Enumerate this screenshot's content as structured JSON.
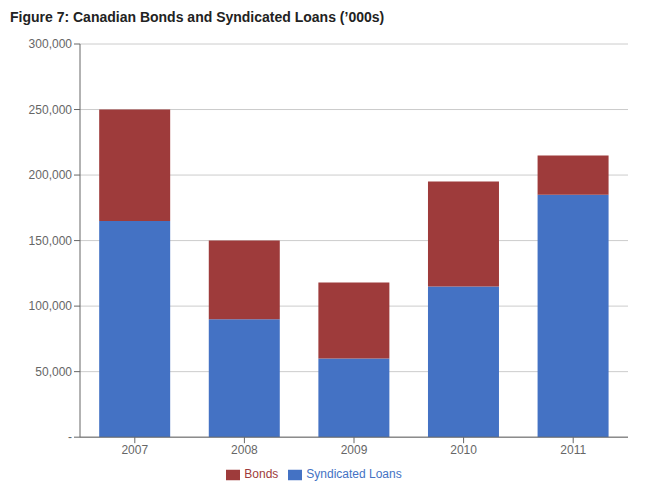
{
  "chart_data": {
    "type": "bar",
    "title": "Figure 7: Canadian Bonds and Syndicated Loans (’000s)",
    "categories": [
      "2007",
      "2008",
      "2009",
      "2010",
      "2011"
    ],
    "series": [
      {
        "name": "Syndicated Loans",
        "color": "#4472C4",
        "values": [
          165000,
          90000,
          60000,
          115000,
          185000
        ]
      },
      {
        "name": "Bonds",
        "color": "#9E3B3B",
        "values": [
          85000,
          60000,
          58000,
          80000,
          30000
        ]
      }
    ],
    "stacked": true,
    "ylim": [
      0,
      300000
    ],
    "yticks": [
      {
        "value": 0,
        "label": "-"
      },
      {
        "value": 50000,
        "label": "50,000"
      },
      {
        "value": 100000,
        "label": "100,000"
      },
      {
        "value": 150000,
        "label": "150,000"
      },
      {
        "value": 200000,
        "label": "200,000"
      },
      {
        "value": 250000,
        "label": "250,000"
      },
      {
        "value": 300000,
        "label": "300,000"
      }
    ],
    "grid": true,
    "legend": "bottom"
  }
}
